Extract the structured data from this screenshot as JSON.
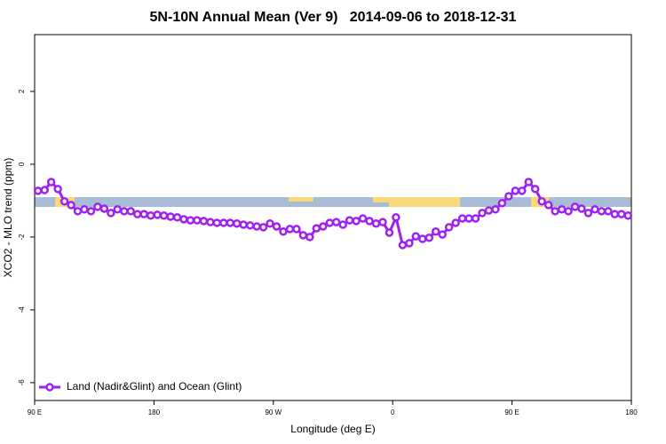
{
  "chart_data": {
    "type": "line",
    "title": "5N-10N Annual Mean (Ver 9)   2014-09-06 to 2018-12-31",
    "x_label": "Longitude (deg E)",
    "y_label": "XCO2 - MLO trend (ppm)",
    "xlim": [
      90,
      540
    ],
    "xticks": [
      {
        "value": 90,
        "label": "90 E"
      },
      180,
      {
        "value": 270,
        "label": "90 W"
      },
      {
        "value": 360,
        "label": "0"
      },
      {
        "value": 450,
        "label": "90 E"
      },
      {
        "value": 540,
        "label": "180"
      }
    ],
    "ylim": [
      -6.49,
      3.56
    ],
    "yticks": [
      2,
      0,
      -2,
      -4,
      -6
    ],
    "legend": "lower left",
    "x": [
      92.5,
      97.5,
      102.5,
      107.5,
      112.5,
      117.5,
      122.5,
      127.5,
      132.5,
      137.5,
      142.5,
      147.5,
      152.5,
      157.5,
      162.5,
      167.5,
      172.5,
      177.5,
      182.5,
      187.5,
      192.5,
      197.5,
      202.5,
      207.5,
      212.5,
      217.5,
      222.5,
      227.5,
      232.5,
      237.5,
      242.5,
      247.5,
      252.5,
      257.5,
      262.5,
      267.5,
      272.5,
      277.5,
      282.5,
      287.5,
      292.5,
      297.5,
      302.5,
      307.5,
      312.5,
      317.5,
      322.5,
      327.5,
      332.5,
      337.5,
      342.5,
      347.5,
      352.5,
      357.5,
      362.5,
      367.5,
      372.5,
      377.5,
      382.5,
      387.5,
      392.5,
      397.5,
      402.5,
      407.5,
      412.5,
      417.5,
      422.5,
      427.5,
      432.5,
      437.5,
      442.5,
      447.5,
      452.5,
      457.5,
      462.5,
      467.5,
      472.5,
      477.5,
      482.5,
      487.5,
      492.5,
      497.5,
      502.5,
      507.5,
      512.5,
      517.5,
      522.5,
      527.5,
      532.5,
      537.5
    ],
    "series": [
      {
        "name": "Land (Nadir&Glint) and Ocean (Glint)",
        "color": "#a020f0",
        "values": [
          -0.73,
          -0.71,
          -0.49,
          -0.68,
          -1.02,
          -1.12,
          -1.29,
          -1.24,
          -1.29,
          -1.17,
          -1.22,
          -1.34,
          -1.24,
          -1.29,
          -1.29,
          -1.37,
          -1.37,
          -1.41,
          -1.39,
          -1.41,
          -1.44,
          -1.46,
          -1.51,
          -1.54,
          -1.54,
          -1.56,
          -1.59,
          -1.61,
          -1.61,
          -1.61,
          -1.63,
          -1.66,
          -1.68,
          -1.71,
          -1.73,
          -1.63,
          -1.71,
          -1.85,
          -1.78,
          -1.78,
          -1.95,
          -2.0,
          -1.76,
          -1.71,
          -1.61,
          -1.59,
          -1.66,
          -1.54,
          -1.56,
          -1.49,
          -1.56,
          -1.63,
          -1.59,
          -1.88,
          -1.46,
          -2.22,
          -2.17,
          -1.98,
          -2.05,
          -2.02,
          -1.85,
          -1.93,
          -1.73,
          -1.61,
          -1.49,
          -1.49,
          -1.49,
          -1.34,
          -1.27,
          -1.24,
          -1.07,
          -0.88,
          -0.73,
          -0.73,
          -0.49,
          -0.68,
          -1.02,
          -1.12,
          -1.29,
          -1.24,
          -1.29,
          -1.17,
          -1.22,
          -1.34,
          -1.24,
          -1.29,
          -1.29,
          -1.37,
          -1.37,
          -1.41
        ]
      }
    ]
  }
}
